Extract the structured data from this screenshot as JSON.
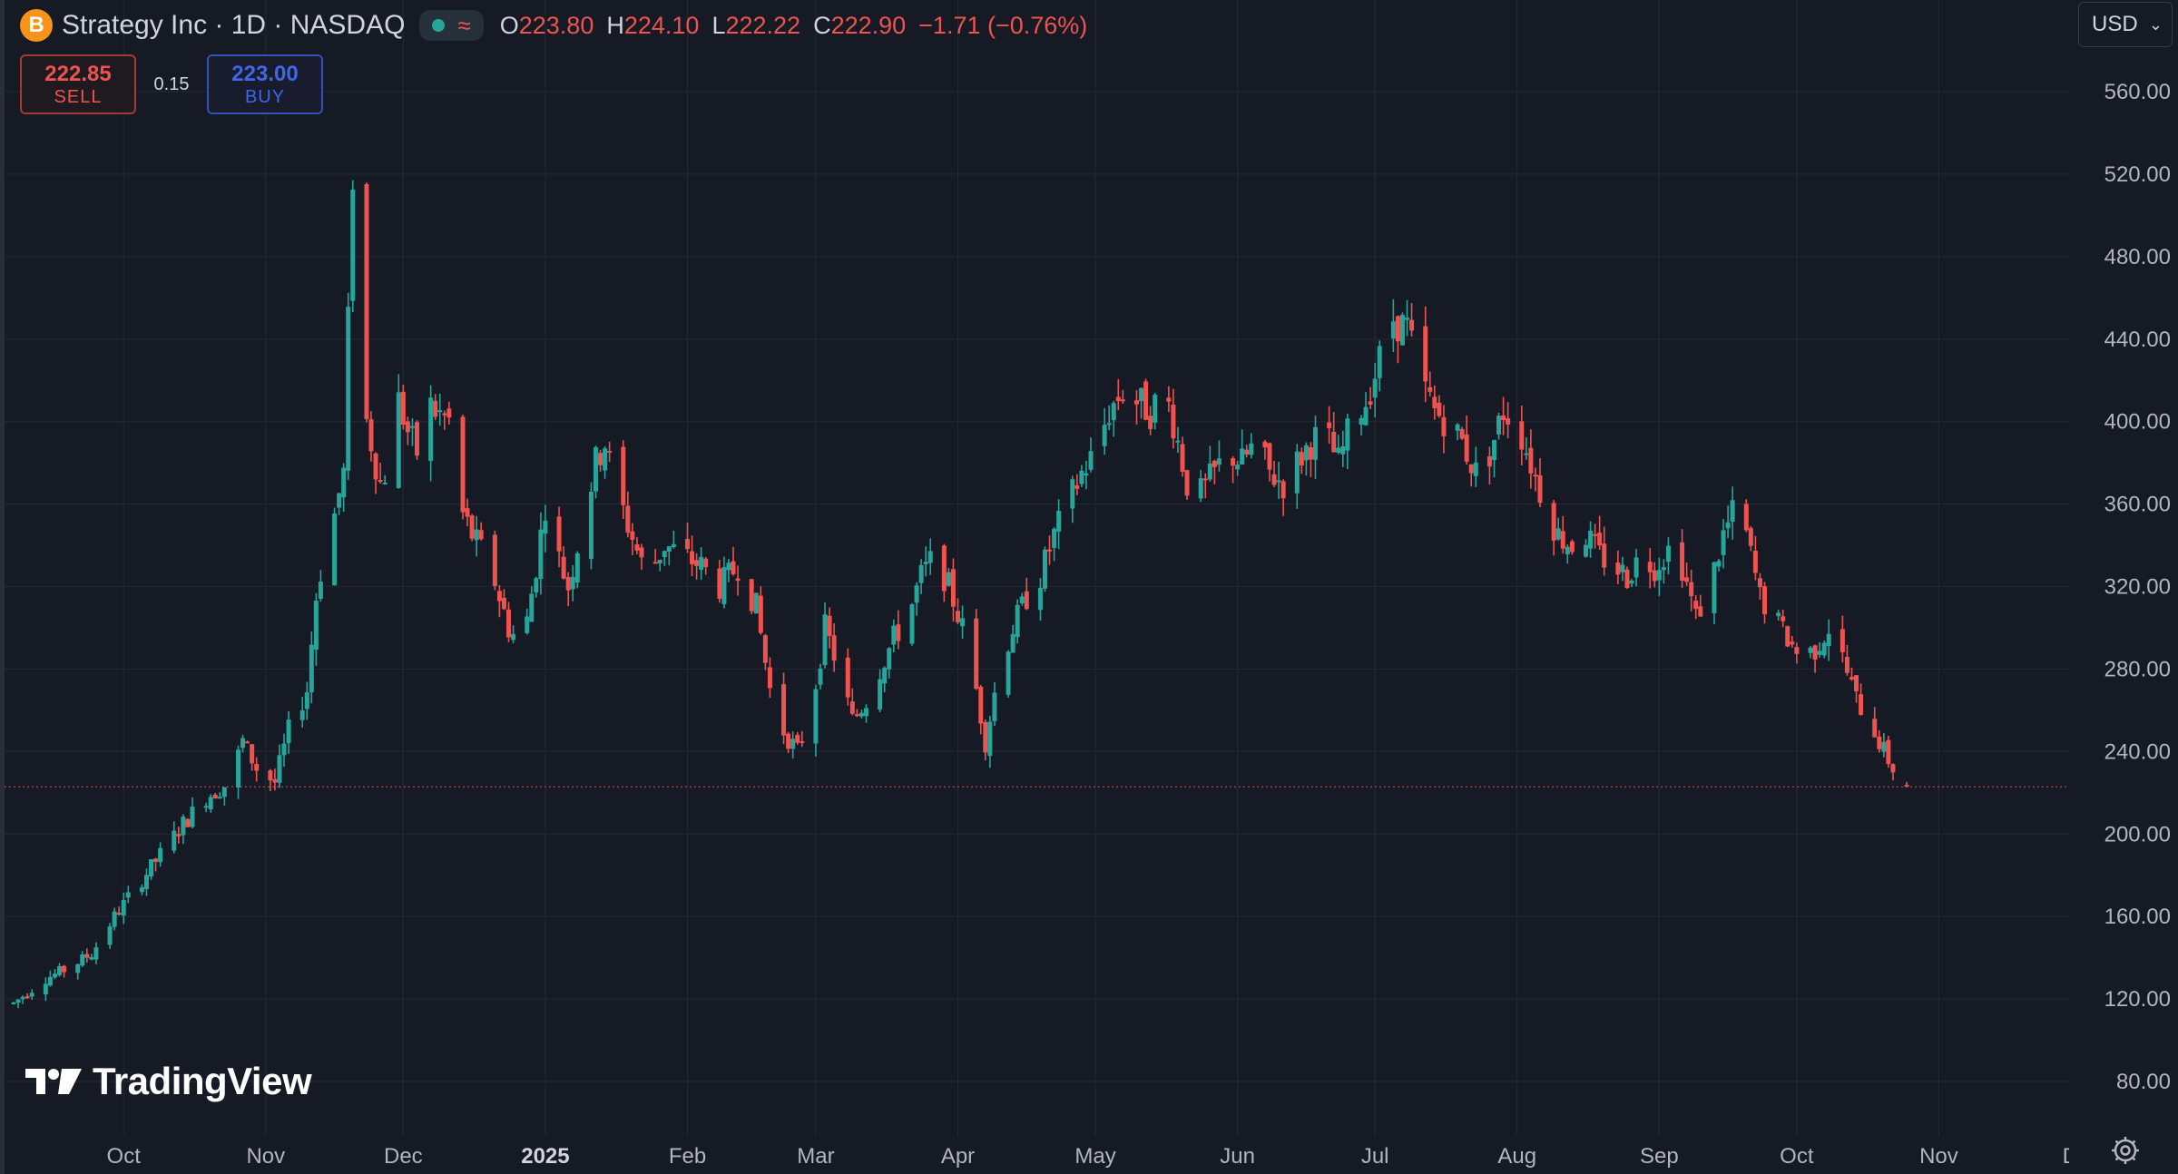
{
  "header": {
    "logo_letter": "B",
    "symbol_title": "Strategy Inc · 1D · NASDAQ",
    "status_icon": "market-open-dot",
    "approx_icon": "≈",
    "ohlc": {
      "o_label": "O",
      "o_value": "223.80",
      "h_label": "H",
      "h_value": "224.10",
      "l_label": "L",
      "l_value": "222.22",
      "c_label": "C",
      "c_value": "222.90",
      "change": "−1.71 (−0.76%)"
    }
  },
  "trade": {
    "sell_price": "222.85",
    "sell_label": "SELL",
    "spread": "0.15",
    "buy_price": "223.00",
    "buy_label": "BUY"
  },
  "currency": {
    "value": "USD"
  },
  "brand": {
    "name": "TradingView"
  },
  "colors": {
    "up": "#26a69a",
    "down": "#ef5350",
    "background": "#161a25",
    "grid": "#232733",
    "text": "#b2b5be",
    "last_price_line": "#ef5350"
  },
  "chart_data": {
    "type": "candlestick",
    "title": "Strategy Inc · 1D · NASDAQ",
    "currency": "USD",
    "grid": true,
    "ylim": [
      60,
      580
    ],
    "yticks": [
      80,
      120,
      160,
      200,
      240,
      280,
      320,
      360,
      400,
      440,
      480,
      520,
      560
    ],
    "ytick_labels": [
      "80.00",
      "120.00",
      "160.00",
      "200.00",
      "240.00",
      "280.00",
      "320.00",
      "360.00",
      "400.00",
      "440.00",
      "480.00",
      "520.00",
      "560.00"
    ],
    "xtick_labels": [
      "Oct",
      "Nov",
      "Dec",
      "2025",
      "Feb",
      "Mar",
      "Apr",
      "May",
      "Jun",
      "Jul",
      "Aug",
      "Sep",
      "Oct",
      "Nov",
      "De"
    ],
    "xlim_days": [
      0,
      431
    ],
    "xtick_days": [
      24,
      55,
      85,
      116,
      147,
      175,
      206,
      236,
      267,
      297,
      328,
      359,
      389,
      420,
      450
    ],
    "last_price": 222.9,
    "trend_anchors": [
      [
        0,
        118
      ],
      [
        7,
        130
      ],
      [
        12,
        135
      ],
      [
        17,
        142
      ],
      [
        22,
        160
      ],
      [
        27,
        175
      ],
      [
        32,
        190
      ],
      [
        37,
        205
      ],
      [
        42,
        218
      ],
      [
        47,
        225
      ],
      [
        50,
        245
      ],
      [
        53,
        232
      ],
      [
        57,
        225
      ],
      [
        60,
        250
      ],
      [
        64,
        270
      ],
      [
        66,
        315
      ],
      [
        68,
        340
      ],
      [
        70,
        355
      ],
      [
        72,
        375
      ],
      [
        74,
        520
      ],
      [
        76,
        410
      ],
      [
        78,
        390
      ],
      [
        80,
        370
      ],
      [
        82,
        380
      ],
      [
        84,
        410
      ],
      [
        86,
        395
      ],
      [
        88,
        385
      ],
      [
        90,
        410
      ],
      [
        92,
        405
      ],
      [
        95,
        400
      ],
      [
        97,
        360
      ],
      [
        100,
        345
      ],
      [
        104,
        330
      ],
      [
        108,
        300
      ],
      [
        111,
        290
      ],
      [
        114,
        330
      ],
      [
        116,
        360
      ],
      [
        118,
        340
      ],
      [
        121,
        320
      ],
      [
        124,
        350
      ],
      [
        127,
        380
      ],
      [
        129,
        390
      ],
      [
        131,
        370
      ],
      [
        134,
        350
      ],
      [
        138,
        325
      ],
      [
        142,
        340
      ],
      [
        146,
        335
      ],
      [
        150,
        330
      ],
      [
        154,
        320
      ],
      [
        158,
        330
      ],
      [
        162,
        310
      ],
      [
        165,
        270
      ],
      [
        168,
        250
      ],
      [
        171,
        240
      ],
      [
        174,
        260
      ],
      [
        177,
        300
      ],
      [
        180,
        280
      ],
      [
        183,
        255
      ],
      [
        186,
        265
      ],
      [
        189,
        280
      ],
      [
        192,
        295
      ],
      [
        195,
        305
      ],
      [
        198,
        325
      ],
      [
        201,
        335
      ],
      [
        204,
        320
      ],
      [
        207,
        300
      ],
      [
        210,
        270
      ],
      [
        212,
        245
      ],
      [
        215,
        280
      ],
      [
        218,
        300
      ],
      [
        221,
        315
      ],
      [
        224,
        325
      ],
      [
        227,
        345
      ],
      [
        230,
        360
      ],
      [
        233,
        375
      ],
      [
        236,
        385
      ],
      [
        239,
        405
      ],
      [
        242,
        415
      ],
      [
        245,
        410
      ],
      [
        248,
        405
      ],
      [
        251,
        415
      ],
      [
        253,
        400
      ],
      [
        256,
        370
      ],
      [
        259,
        365
      ],
      [
        262,
        375
      ],
      [
        265,
        385
      ],
      [
        268,
        380
      ],
      [
        271,
        390
      ],
      [
        274,
        375
      ],
      [
        277,
        370
      ],
      [
        280,
        380
      ],
      [
        283,
        390
      ],
      [
        286,
        395
      ],
      [
        289,
        380
      ],
      [
        292,
        400
      ],
      [
        295,
        410
      ],
      [
        298,
        430
      ],
      [
        301,
        450
      ],
      [
        304,
        445
      ],
      [
        307,
        420
      ],
      [
        310,
        405
      ],
      [
        313,
        400
      ],
      [
        316,
        390
      ],
      [
        319,
        375
      ],
      [
        322,
        385
      ],
      [
        325,
        405
      ],
      [
        328,
        400
      ],
      [
        331,
        380
      ],
      [
        334,
        360
      ],
      [
        337,
        345
      ],
      [
        340,
        340
      ],
      [
        343,
        345
      ],
      [
        346,
        335
      ],
      [
        349,
        330
      ],
      [
        352,
        325
      ],
      [
        355,
        335
      ],
      [
        358,
        330
      ],
      [
        361,
        338
      ],
      [
        364,
        330
      ],
      [
        367,
        305
      ],
      [
        370,
        320
      ],
      [
        373,
        345
      ],
      [
        376,
        360
      ],
      [
        378,
        345
      ],
      [
        381,
        315
      ],
      [
        384,
        305
      ],
      [
        387,
        295
      ],
      [
        390,
        285
      ],
      [
        393,
        290
      ],
      [
        396,
        300
      ],
      [
        399,
        285
      ],
      [
        402,
        265
      ],
      [
        405,
        255
      ],
      [
        408,
        240
      ],
      [
        411,
        228
      ],
      [
        413,
        222.9
      ]
    ]
  }
}
